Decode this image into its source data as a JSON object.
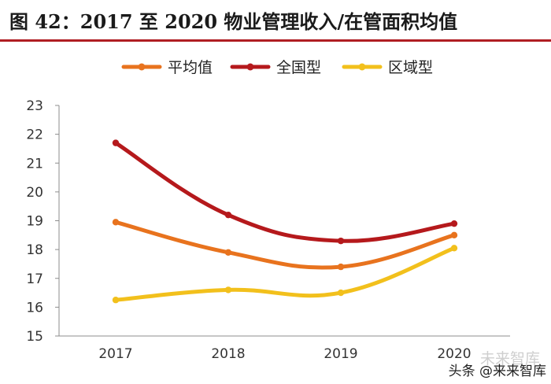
{
  "figure": {
    "title": "图 42：2017 至 2020 物业管理收入/在管面积均值"
  },
  "chart_data": {
    "type": "line",
    "title": "",
    "xlabel": "",
    "ylabel": "",
    "categories": [
      "2017",
      "2018",
      "2019",
      "2020"
    ],
    "ylim": [
      15,
      23
    ],
    "yticks": [
      "15",
      "16",
      "17",
      "18",
      "19",
      "20",
      "21",
      "22",
      "23"
    ],
    "legend_position": "top",
    "series": [
      {
        "name": "平均值",
        "color": "#e8731e",
        "values": [
          18.95,
          17.9,
          17.4,
          18.5
        ]
      },
      {
        "name": "全国型",
        "color": "#b5191c",
        "values": [
          21.7,
          19.2,
          18.3,
          18.9
        ]
      },
      {
        "name": "区域型",
        "color": "#f2c01c",
        "values": [
          16.25,
          16.6,
          16.5,
          18.05
        ]
      }
    ]
  },
  "watermark": {
    "text": "头条 @来来智库",
    "overlay_text": "未来智库"
  }
}
